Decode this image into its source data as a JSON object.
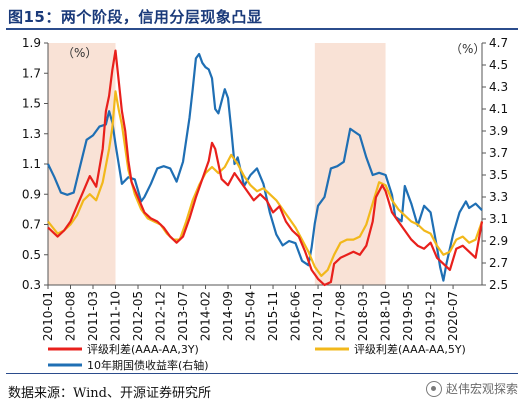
{
  "header": {
    "title": "图15：两个阶段，信用分层现象凸显"
  },
  "footer": {
    "source": "数据来源：Wind、开源证券研究所",
    "watermark": "赵伟宏观探索"
  },
  "chart_data": {
    "type": "line",
    "left_unit": "（%）",
    "right_unit": "（%）",
    "left_axis": {
      "min": 0.3,
      "max": 1.9,
      "ticks": [
        "0.3",
        "0.5",
        "0.7",
        "0.9",
        "1.1",
        "1.3",
        "1.5",
        "1.7",
        "1.9"
      ]
    },
    "right_axis": {
      "min": 2.5,
      "max": 4.7,
      "ticks": [
        "2.5",
        "2.7",
        "2.9",
        "3.1",
        "3.3",
        "3.5",
        "3.7",
        "3.9",
        "4.1",
        "4.3",
        "4.5",
        "4.7"
      ]
    },
    "x_range": [
      "2010-01",
      "2021-04"
    ],
    "x_ticks": [
      "2010-01",
      "2010-08",
      "2011-03",
      "2011-10",
      "2012-05",
      "2012-12",
      "2013-07",
      "2014-02",
      "2014-09",
      "2015-04",
      "2015-11",
      "2016-06",
      "2017-01",
      "2017-08",
      "2018-03",
      "2018-10",
      "2019-05",
      "2019-12",
      "2020-07"
    ],
    "shaded_periods": [
      {
        "start": "2010-01",
        "end": "2011-10"
      },
      {
        "start": "2016-12",
        "end": "2018-10"
      }
    ],
    "series": [
      {
        "name": "评级利差(AAA-AA,3Y)",
        "axis": "left",
        "color": "#e8201c",
        "points": [
          [
            "2010-01",
            0.68
          ],
          [
            "2010-04",
            0.62
          ],
          [
            "2010-06",
            0.66
          ],
          [
            "2010-08",
            0.72
          ],
          [
            "2010-10",
            0.82
          ],
          [
            "2010-12",
            0.92
          ],
          [
            "2011-02",
            1.02
          ],
          [
            "2011-04",
            0.95
          ],
          [
            "2011-06",
            1.2
          ],
          [
            "2011-07",
            1.45
          ],
          [
            "2011-08",
            1.55
          ],
          [
            "2011-09",
            1.72
          ],
          [
            "2011-10",
            1.85
          ],
          [
            "2011-11",
            1.65
          ],
          [
            "2011-12",
            1.45
          ],
          [
            "2012-01",
            1.32
          ],
          [
            "2012-02",
            1.12
          ],
          [
            "2012-03",
            0.98
          ],
          [
            "2012-05",
            0.88
          ],
          [
            "2012-07",
            0.78
          ],
          [
            "2012-09",
            0.74
          ],
          [
            "2012-11",
            0.72
          ],
          [
            "2013-01",
            0.68
          ],
          [
            "2013-03",
            0.62
          ],
          [
            "2013-05",
            0.58
          ],
          [
            "2013-07",
            0.62
          ],
          [
            "2013-09",
            0.74
          ],
          [
            "2013-11",
            0.88
          ],
          [
            "2014-01",
            1.0
          ],
          [
            "2014-03",
            1.12
          ],
          [
            "2014-04",
            1.24
          ],
          [
            "2014-05",
            1.2
          ],
          [
            "2014-07",
            1.0
          ],
          [
            "2014-09",
            0.96
          ],
          [
            "2014-11",
            1.04
          ],
          [
            "2015-01",
            0.98
          ],
          [
            "2015-03",
            0.92
          ],
          [
            "2015-05",
            0.86
          ],
          [
            "2015-07",
            0.9
          ],
          [
            "2015-09",
            0.86
          ],
          [
            "2015-11",
            0.78
          ],
          [
            "2016-01",
            0.82
          ],
          [
            "2016-03",
            0.72
          ],
          [
            "2016-05",
            0.66
          ],
          [
            "2016-07",
            0.62
          ],
          [
            "2016-09",
            0.52
          ],
          [
            "2016-11",
            0.4
          ],
          [
            "2017-01",
            0.34
          ],
          [
            "2017-03",
            0.3
          ],
          [
            "2017-05",
            0.32
          ],
          [
            "2017-06",
            0.44
          ],
          [
            "2017-08",
            0.48
          ],
          [
            "2017-10",
            0.5
          ],
          [
            "2017-12",
            0.52
          ],
          [
            "2018-02",
            0.5
          ],
          [
            "2018-04",
            0.56
          ],
          [
            "2018-06",
            0.72
          ],
          [
            "2018-07",
            0.88
          ],
          [
            "2018-09",
            0.96
          ],
          [
            "2018-10",
            0.92
          ],
          [
            "2018-12",
            0.78
          ],
          [
            "2019-02",
            0.72
          ],
          [
            "2019-04",
            0.66
          ],
          [
            "2019-06",
            0.6
          ],
          [
            "2019-08",
            0.56
          ],
          [
            "2019-10",
            0.54
          ],
          [
            "2019-12",
            0.58
          ],
          [
            "2020-02",
            0.48
          ],
          [
            "2020-04",
            0.44
          ],
          [
            "2020-06",
            0.4
          ],
          [
            "2020-08",
            0.54
          ],
          [
            "2020-10",
            0.56
          ],
          [
            "2020-12",
            0.52
          ],
          [
            "2021-02",
            0.48
          ],
          [
            "2021-04",
            0.72
          ]
        ]
      },
      {
        "name": "评级利差(AAA-AA,5Y)",
        "axis": "left",
        "color": "#f2b81b",
        "points": [
          [
            "2010-01",
            0.72
          ],
          [
            "2010-04",
            0.64
          ],
          [
            "2010-06",
            0.66
          ],
          [
            "2010-08",
            0.7
          ],
          [
            "2010-10",
            0.76
          ],
          [
            "2010-12",
            0.86
          ],
          [
            "2011-02",
            0.9
          ],
          [
            "2011-04",
            0.86
          ],
          [
            "2011-06",
            0.98
          ],
          [
            "2011-08",
            1.2
          ],
          [
            "2011-09",
            1.34
          ],
          [
            "2011-10",
            1.58
          ],
          [
            "2011-11",
            1.46
          ],
          [
            "2011-12",
            1.36
          ],
          [
            "2012-02",
            1.06
          ],
          [
            "2012-04",
            0.9
          ],
          [
            "2012-06",
            0.8
          ],
          [
            "2012-08",
            0.74
          ],
          [
            "2012-10",
            0.72
          ],
          [
            "2012-12",
            0.7
          ],
          [
            "2013-02",
            0.64
          ],
          [
            "2013-04",
            0.6
          ],
          [
            "2013-06",
            0.6
          ],
          [
            "2013-08",
            0.72
          ],
          [
            "2013-10",
            0.86
          ],
          [
            "2013-12",
            0.96
          ],
          [
            "2014-02",
            1.04
          ],
          [
            "2014-04",
            1.08
          ],
          [
            "2014-06",
            1.04
          ],
          [
            "2014-08",
            1.08
          ],
          [
            "2014-10",
            1.16
          ],
          [
            "2014-12",
            1.1
          ],
          [
            "2015-02",
            1.02
          ],
          [
            "2015-04",
            0.96
          ],
          [
            "2015-06",
            0.92
          ],
          [
            "2015-08",
            0.94
          ],
          [
            "2015-10",
            0.9
          ],
          [
            "2015-12",
            0.86
          ],
          [
            "2016-02",
            0.8
          ],
          [
            "2016-04",
            0.74
          ],
          [
            "2016-06",
            0.68
          ],
          [
            "2016-08",
            0.6
          ],
          [
            "2016-10",
            0.52
          ],
          [
            "2016-12",
            0.42
          ],
          [
            "2017-02",
            0.36
          ],
          [
            "2017-04",
            0.4
          ],
          [
            "2017-06",
            0.5
          ],
          [
            "2017-08",
            0.58
          ],
          [
            "2017-10",
            0.6
          ],
          [
            "2017-12",
            0.6
          ],
          [
            "2018-02",
            0.62
          ],
          [
            "2018-04",
            0.7
          ],
          [
            "2018-06",
            0.84
          ],
          [
            "2018-08",
            0.98
          ],
          [
            "2018-10",
            0.96
          ],
          [
            "2018-12",
            0.86
          ],
          [
            "2019-02",
            0.8
          ],
          [
            "2019-04",
            0.76
          ],
          [
            "2019-06",
            0.72
          ],
          [
            "2019-08",
            0.7
          ],
          [
            "2019-10",
            0.66
          ],
          [
            "2019-12",
            0.64
          ],
          [
            "2020-02",
            0.56
          ],
          [
            "2020-04",
            0.5
          ],
          [
            "2020-06",
            0.52
          ],
          [
            "2020-08",
            0.6
          ],
          [
            "2020-10",
            0.62
          ],
          [
            "2020-12",
            0.58
          ],
          [
            "2021-02",
            0.6
          ],
          [
            "2021-04",
            0.72
          ]
        ]
      },
      {
        "name": "10年期国债收益率(右轴)",
        "axis": "right",
        "color": "#1f6fb4",
        "points": [
          [
            "2010-01",
            3.6
          ],
          [
            "2010-03",
            3.48
          ],
          [
            "2010-05",
            3.34
          ],
          [
            "2010-07",
            3.32
          ],
          [
            "2010-09",
            3.34
          ],
          [
            "2010-11",
            3.58
          ],
          [
            "2011-01",
            3.82
          ],
          [
            "2011-03",
            3.86
          ],
          [
            "2011-05",
            3.94
          ],
          [
            "2011-07",
            3.96
          ],
          [
            "2011-08",
            4.08
          ],
          [
            "2011-09",
            3.98
          ],
          [
            "2011-10",
            3.78
          ],
          [
            "2011-11",
            3.6
          ],
          [
            "2011-12",
            3.42
          ],
          [
            "2012-02",
            3.48
          ],
          [
            "2012-04",
            3.46
          ],
          [
            "2012-06",
            3.26
          ],
          [
            "2012-07",
            3.3
          ],
          [
            "2012-09",
            3.42
          ],
          [
            "2012-11",
            3.56
          ],
          [
            "2013-01",
            3.58
          ],
          [
            "2013-03",
            3.56
          ],
          [
            "2013-05",
            3.44
          ],
          [
            "2013-07",
            3.62
          ],
          [
            "2013-09",
            4.02
          ],
          [
            "2013-10",
            4.28
          ],
          [
            "2013-11",
            4.56
          ],
          [
            "2013-12",
            4.6
          ],
          [
            "2014-01",
            4.52
          ],
          [
            "2014-02",
            4.48
          ],
          [
            "2014-03",
            4.46
          ],
          [
            "2014-04",
            4.38
          ],
          [
            "2014-05",
            4.1
          ],
          [
            "2014-06",
            4.06
          ],
          [
            "2014-08",
            4.28
          ],
          [
            "2014-09",
            4.2
          ],
          [
            "2014-10",
            3.92
          ],
          [
            "2014-11",
            3.6
          ],
          [
            "2014-12",
            3.66
          ],
          [
            "2015-02",
            3.4
          ],
          [
            "2015-04",
            3.5
          ],
          [
            "2015-06",
            3.56
          ],
          [
            "2015-08",
            3.42
          ],
          [
            "2015-10",
            3.16
          ],
          [
            "2015-12",
            2.96
          ],
          [
            "2016-02",
            2.86
          ],
          [
            "2016-04",
            2.9
          ],
          [
            "2016-06",
            2.88
          ],
          [
            "2016-08",
            2.72
          ],
          [
            "2016-10",
            2.68
          ],
          [
            "2016-11",
            2.84
          ],
          [
            "2016-12",
            3.06
          ],
          [
            "2017-01",
            3.22
          ],
          [
            "2017-03",
            3.3
          ],
          [
            "2017-05",
            3.56
          ],
          [
            "2017-07",
            3.58
          ],
          [
            "2017-09",
            3.62
          ],
          [
            "2017-11",
            3.92
          ],
          [
            "2017-12",
            3.9
          ],
          [
            "2018-02",
            3.86
          ],
          [
            "2018-04",
            3.66
          ],
          [
            "2018-06",
            3.5
          ],
          [
            "2018-08",
            3.52
          ],
          [
            "2018-10",
            3.5
          ],
          [
            "2018-12",
            3.32
          ],
          [
            "2019-01",
            3.12
          ],
          [
            "2019-03",
            3.08
          ],
          [
            "2019-04",
            3.4
          ],
          [
            "2019-06",
            3.24
          ],
          [
            "2019-08",
            3.04
          ],
          [
            "2019-10",
            3.22
          ],
          [
            "2019-12",
            3.16
          ],
          [
            "2020-02",
            2.84
          ],
          [
            "2020-03",
            2.66
          ],
          [
            "2020-04",
            2.54
          ],
          [
            "2020-05",
            2.7
          ],
          [
            "2020-07",
            2.96
          ],
          [
            "2020-09",
            3.16
          ],
          [
            "2020-11",
            3.26
          ],
          [
            "2020-12",
            3.2
          ],
          [
            "2021-02",
            3.24
          ],
          [
            "2021-04",
            3.18
          ]
        ]
      }
    ]
  }
}
